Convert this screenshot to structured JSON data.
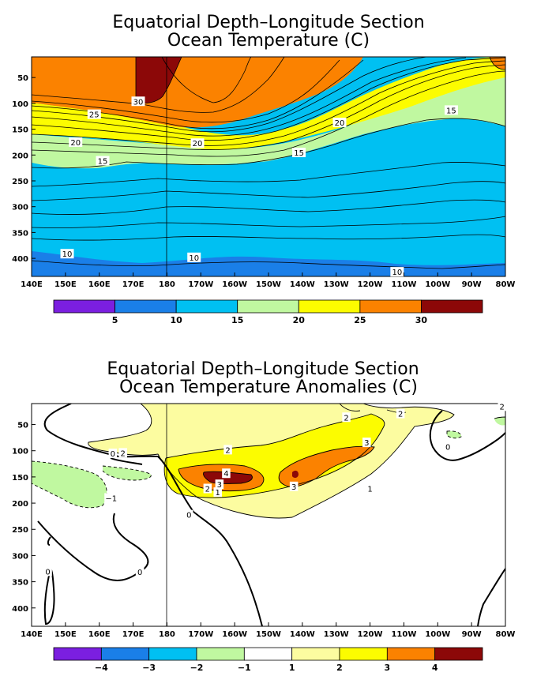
{
  "chart_data": [
    {
      "type": "heatmap",
      "title": "Equatorial Depth–Longitude Section",
      "subtitle": "Ocean Temperature (C)",
      "x_tick_labels": [
        "140E",
        "150E",
        "160E",
        "170E",
        "180",
        "170W",
        "160W",
        "150W",
        "140W",
        "130W",
        "120W",
        "110W",
        "100W",
        "90W",
        "80W"
      ],
      "y_tick_labels": [
        "50",
        "100",
        "150",
        "200",
        "250",
        "300",
        "350",
        "400"
      ],
      "y_ticks": [
        50,
        100,
        150,
        200,
        250,
        300,
        350,
        400
      ],
      "ylim": [
        435,
        10
      ],
      "colorbar_ticks": [
        "5",
        "10",
        "15",
        "20",
        "25",
        "30"
      ],
      "colorbar_colors": [
        "#7b1fe0",
        "#1a7fe8",
        "#00c0f2",
        "#c0f8a0",
        "#fcfc00",
        "#fb8200",
        "#8c0808"
      ],
      "contour_labels": [
        {
          "text": "30",
          "lon": 171.5,
          "depth": 96
        },
        {
          "text": "25",
          "lon": 158.5,
          "depth": 121
        },
        {
          "text": "20",
          "lon": 153,
          "depth": 175
        },
        {
          "text": "20",
          "lon": 189,
          "depth": 177
        },
        {
          "text": "20",
          "lon": 231,
          "depth": 137
        },
        {
          "text": "15",
          "lon": 161,
          "depth": 211
        },
        {
          "text": "15",
          "lon": 219,
          "depth": 195
        },
        {
          "text": "15",
          "lon": 264,
          "depth": 113
        },
        {
          "text": "10",
          "lon": 150.5,
          "depth": 391
        },
        {
          "text": "10",
          "lon": 188,
          "depth": 398
        },
        {
          "text": "10",
          "lon": 248,
          "depth": 426
        }
      ],
      "grid": false
    },
    {
      "type": "heatmap",
      "title": "Equatorial Depth–Longitude Section",
      "subtitle": "Ocean Temperature Anomalies (C)",
      "x_tick_labels": [
        "140E",
        "150E",
        "160E",
        "170E",
        "180",
        "170W",
        "160W",
        "150W",
        "140W",
        "130W",
        "120W",
        "110W",
        "100W",
        "90W",
        "80W"
      ],
      "y_tick_labels": [
        "50",
        "100",
        "150",
        "200",
        "250",
        "300",
        "350",
        "400"
      ],
      "y_ticks": [
        50,
        100,
        150,
        200,
        250,
        300,
        350,
        400
      ],
      "ylim": [
        435,
        10
      ],
      "colorbar_ticks": [
        "−4",
        "−3",
        "−2",
        "−1",
        "1",
        "2",
        "3",
        "4"
      ],
      "colorbar_colors": [
        "#7b1fe0",
        "#1a7fe8",
        "#00c0f2",
        "#c0f8a0",
        "#ffffff",
        "#fcfca0",
        "#fcfc00",
        "#fb8200",
        "#8c0808"
      ],
      "contour_labels": [
        {
          "text": "0",
          "lon": 164,
          "depth": 105
        },
        {
          "text": "2",
          "lon": 167,
          "depth": 104
        },
        {
          "text": "−1",
          "lon": 163.5,
          "depth": 190
        },
        {
          "text": "0",
          "lon": 144.8,
          "depth": 330
        },
        {
          "text": "0",
          "lon": 172,
          "depth": 331
        },
        {
          "text": "0",
          "lon": 186.5,
          "depth": 222
        },
        {
          "text": "2",
          "lon": 198,
          "depth": 98
        },
        {
          "text": "1",
          "lon": 195,
          "depth": 179
        },
        {
          "text": "4",
          "lon": 197.5,
          "depth": 143
        },
        {
          "text": "3",
          "lon": 195.5,
          "depth": 164
        },
        {
          "text": "2",
          "lon": 192,
          "depth": 172
        },
        {
          "text": "3",
          "lon": 217.5,
          "depth": 168
        },
        {
          "text": "3",
          "lon": 239,
          "depth": 84
        },
        {
          "text": "2",
          "lon": 233,
          "depth": 36
        },
        {
          "text": "2",
          "lon": 249,
          "depth": 29
        },
        {
          "text": "1",
          "lon": 240,
          "depth": 172
        },
        {
          "text": "0",
          "lon": 263,
          "depth": 92
        },
        {
          "text": "2",
          "lon": 279,
          "depth": 15
        }
      ],
      "grid": false
    }
  ]
}
